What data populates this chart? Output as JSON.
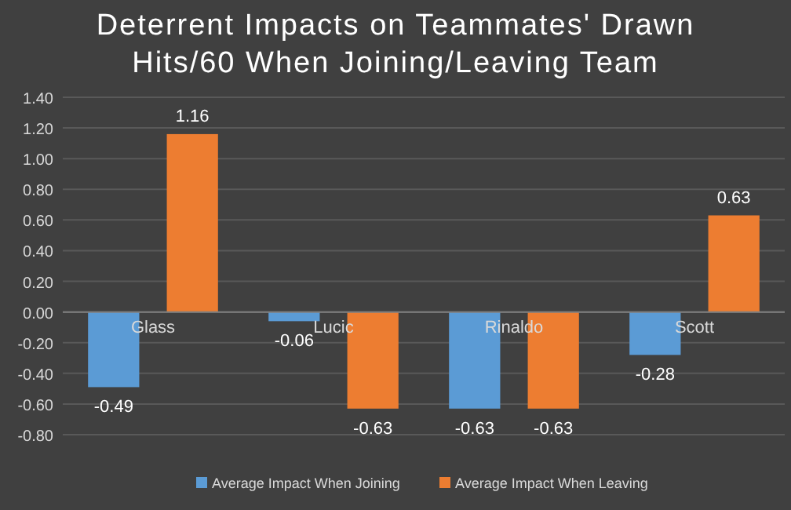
{
  "chart_data": {
    "type": "bar",
    "title": "Deterrent Impacts on Teammates' Drawn\nHits/60 When Joining/Leaving Team",
    "categories": [
      "Glass",
      "Lucic",
      "Rinaldo",
      "Scott"
    ],
    "series": [
      {
        "name": "Average Impact When Joining",
        "color": "#5b9bd5",
        "values": [
          -0.49,
          -0.06,
          -0.63,
          -0.28
        ]
      },
      {
        "name": "Average Impact When Leaving",
        "color": "#ed7d31",
        "values": [
          1.16,
          -0.63,
          -0.63,
          0.63
        ]
      }
    ],
    "ylim": [
      -0.8,
      1.4
    ],
    "yticks": [
      {
        "value": -0.8,
        "label": "-0.80"
      },
      {
        "value": -0.6,
        "label": "-0.60"
      },
      {
        "value": -0.4,
        "label": "-0.40"
      },
      {
        "value": -0.2,
        "label": "-0.20"
      },
      {
        "value": 0,
        "label": "0.00"
      },
      {
        "value": 0.2,
        "label": "0.20"
      },
      {
        "value": 0.4,
        "label": "0.40"
      },
      {
        "value": 0.6,
        "label": "0.60"
      },
      {
        "value": 0.8,
        "label": "0.80"
      },
      {
        "value": 1,
        "label": "1.00"
      },
      {
        "value": 1.2,
        "label": "1.20"
      },
      {
        "value": 1.4,
        "label": "1.40"
      }
    ],
    "grid": true,
    "legend": "bottom",
    "data_labels": true
  }
}
